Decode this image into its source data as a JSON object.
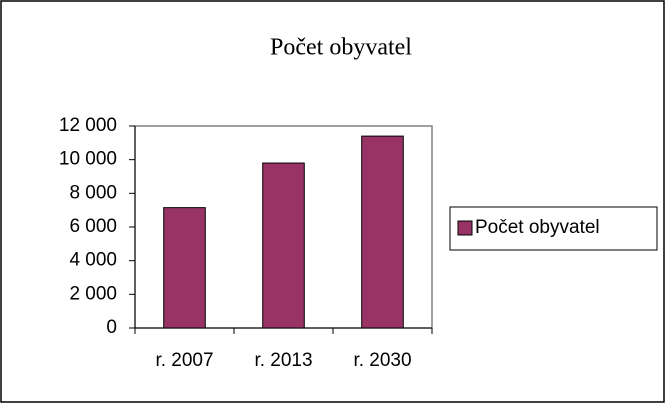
{
  "chart_data": {
    "type": "bar",
    "title": "Počet obyvatel",
    "categories": [
      "r. 2007",
      "r. 2013",
      "r. 2030"
    ],
    "series": [
      {
        "name": "Počet obyvatel",
        "color": "#993366",
        "values": [
          7150,
          9800,
          11400
        ]
      }
    ],
    "ylim": [
      0,
      12000
    ],
    "yticks": [
      0,
      {
        "value": 2000,
        "label": "2 000"
      },
      {
        "value": 4000,
        "label": "4 000"
      },
      {
        "value": 6000,
        "label": "6 000"
      },
      {
        "value": 8000,
        "label": "8 000"
      },
      {
        "value": 10000,
        "label": "10 000"
      },
      {
        "value": 12000,
        "label": "12 000"
      }
    ],
    "grid": false,
    "legend": "right"
  }
}
